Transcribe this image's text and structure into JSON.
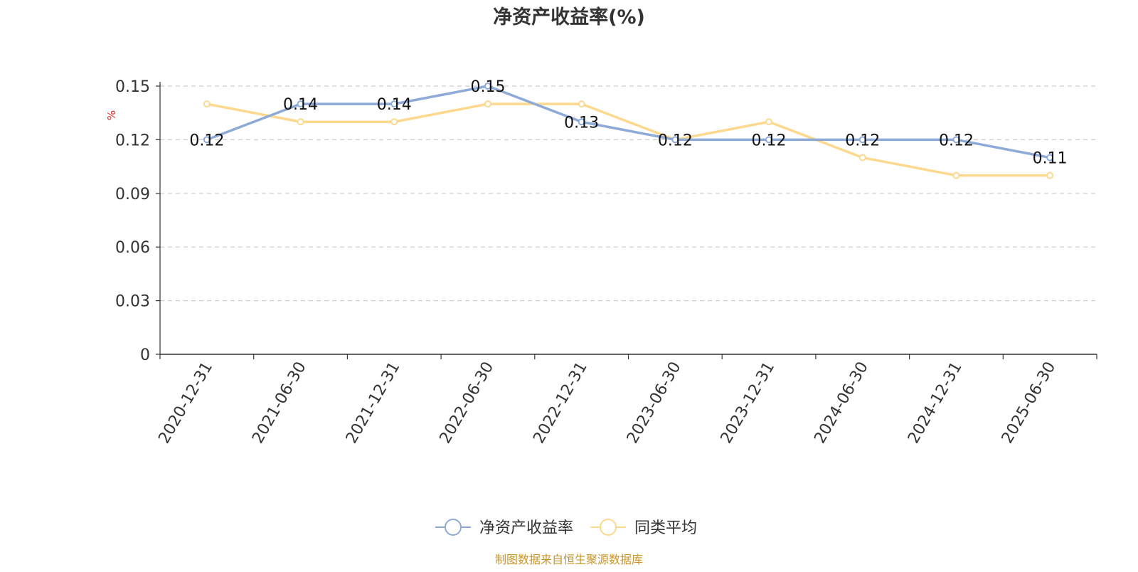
{
  "chart_data": {
    "type": "line",
    "title": "净资产收益率(%)",
    "ylabel": "%",
    "xlabel": "",
    "categories": [
      "2020-12-31",
      "2021-06-30",
      "2021-12-31",
      "2022-06-30",
      "2022-12-31",
      "2023-06-30",
      "2023-12-31",
      "2024-06-30",
      "2024-12-31",
      "2025-06-30"
    ],
    "ylim": [
      0,
      0.15
    ],
    "yticks": [
      "0",
      "0.03",
      "0.06",
      "0.09",
      "0.12",
      "0.15"
    ],
    "grid": true,
    "legend_position": "bottom",
    "series": [
      {
        "name": "净资产收益率",
        "color": "#8eaad6",
        "values": [
          0.12,
          0.14,
          0.14,
          0.15,
          0.13,
          0.12,
          0.12,
          0.12,
          0.12,
          0.11
        ],
        "labels": [
          "0.12",
          "0.14",
          "0.14",
          "0.15",
          "0.13",
          "0.12",
          "0.12",
          "0.12",
          "0.12",
          "0.11"
        ]
      },
      {
        "name": "同类平均",
        "color": "#fdd990",
        "values": [
          0.14,
          0.13,
          0.13,
          0.14,
          0.14,
          0.12,
          0.13,
          0.11,
          0.1,
          0.1
        ]
      }
    ]
  },
  "source_note": "制图数据来自恒生聚源数据库"
}
